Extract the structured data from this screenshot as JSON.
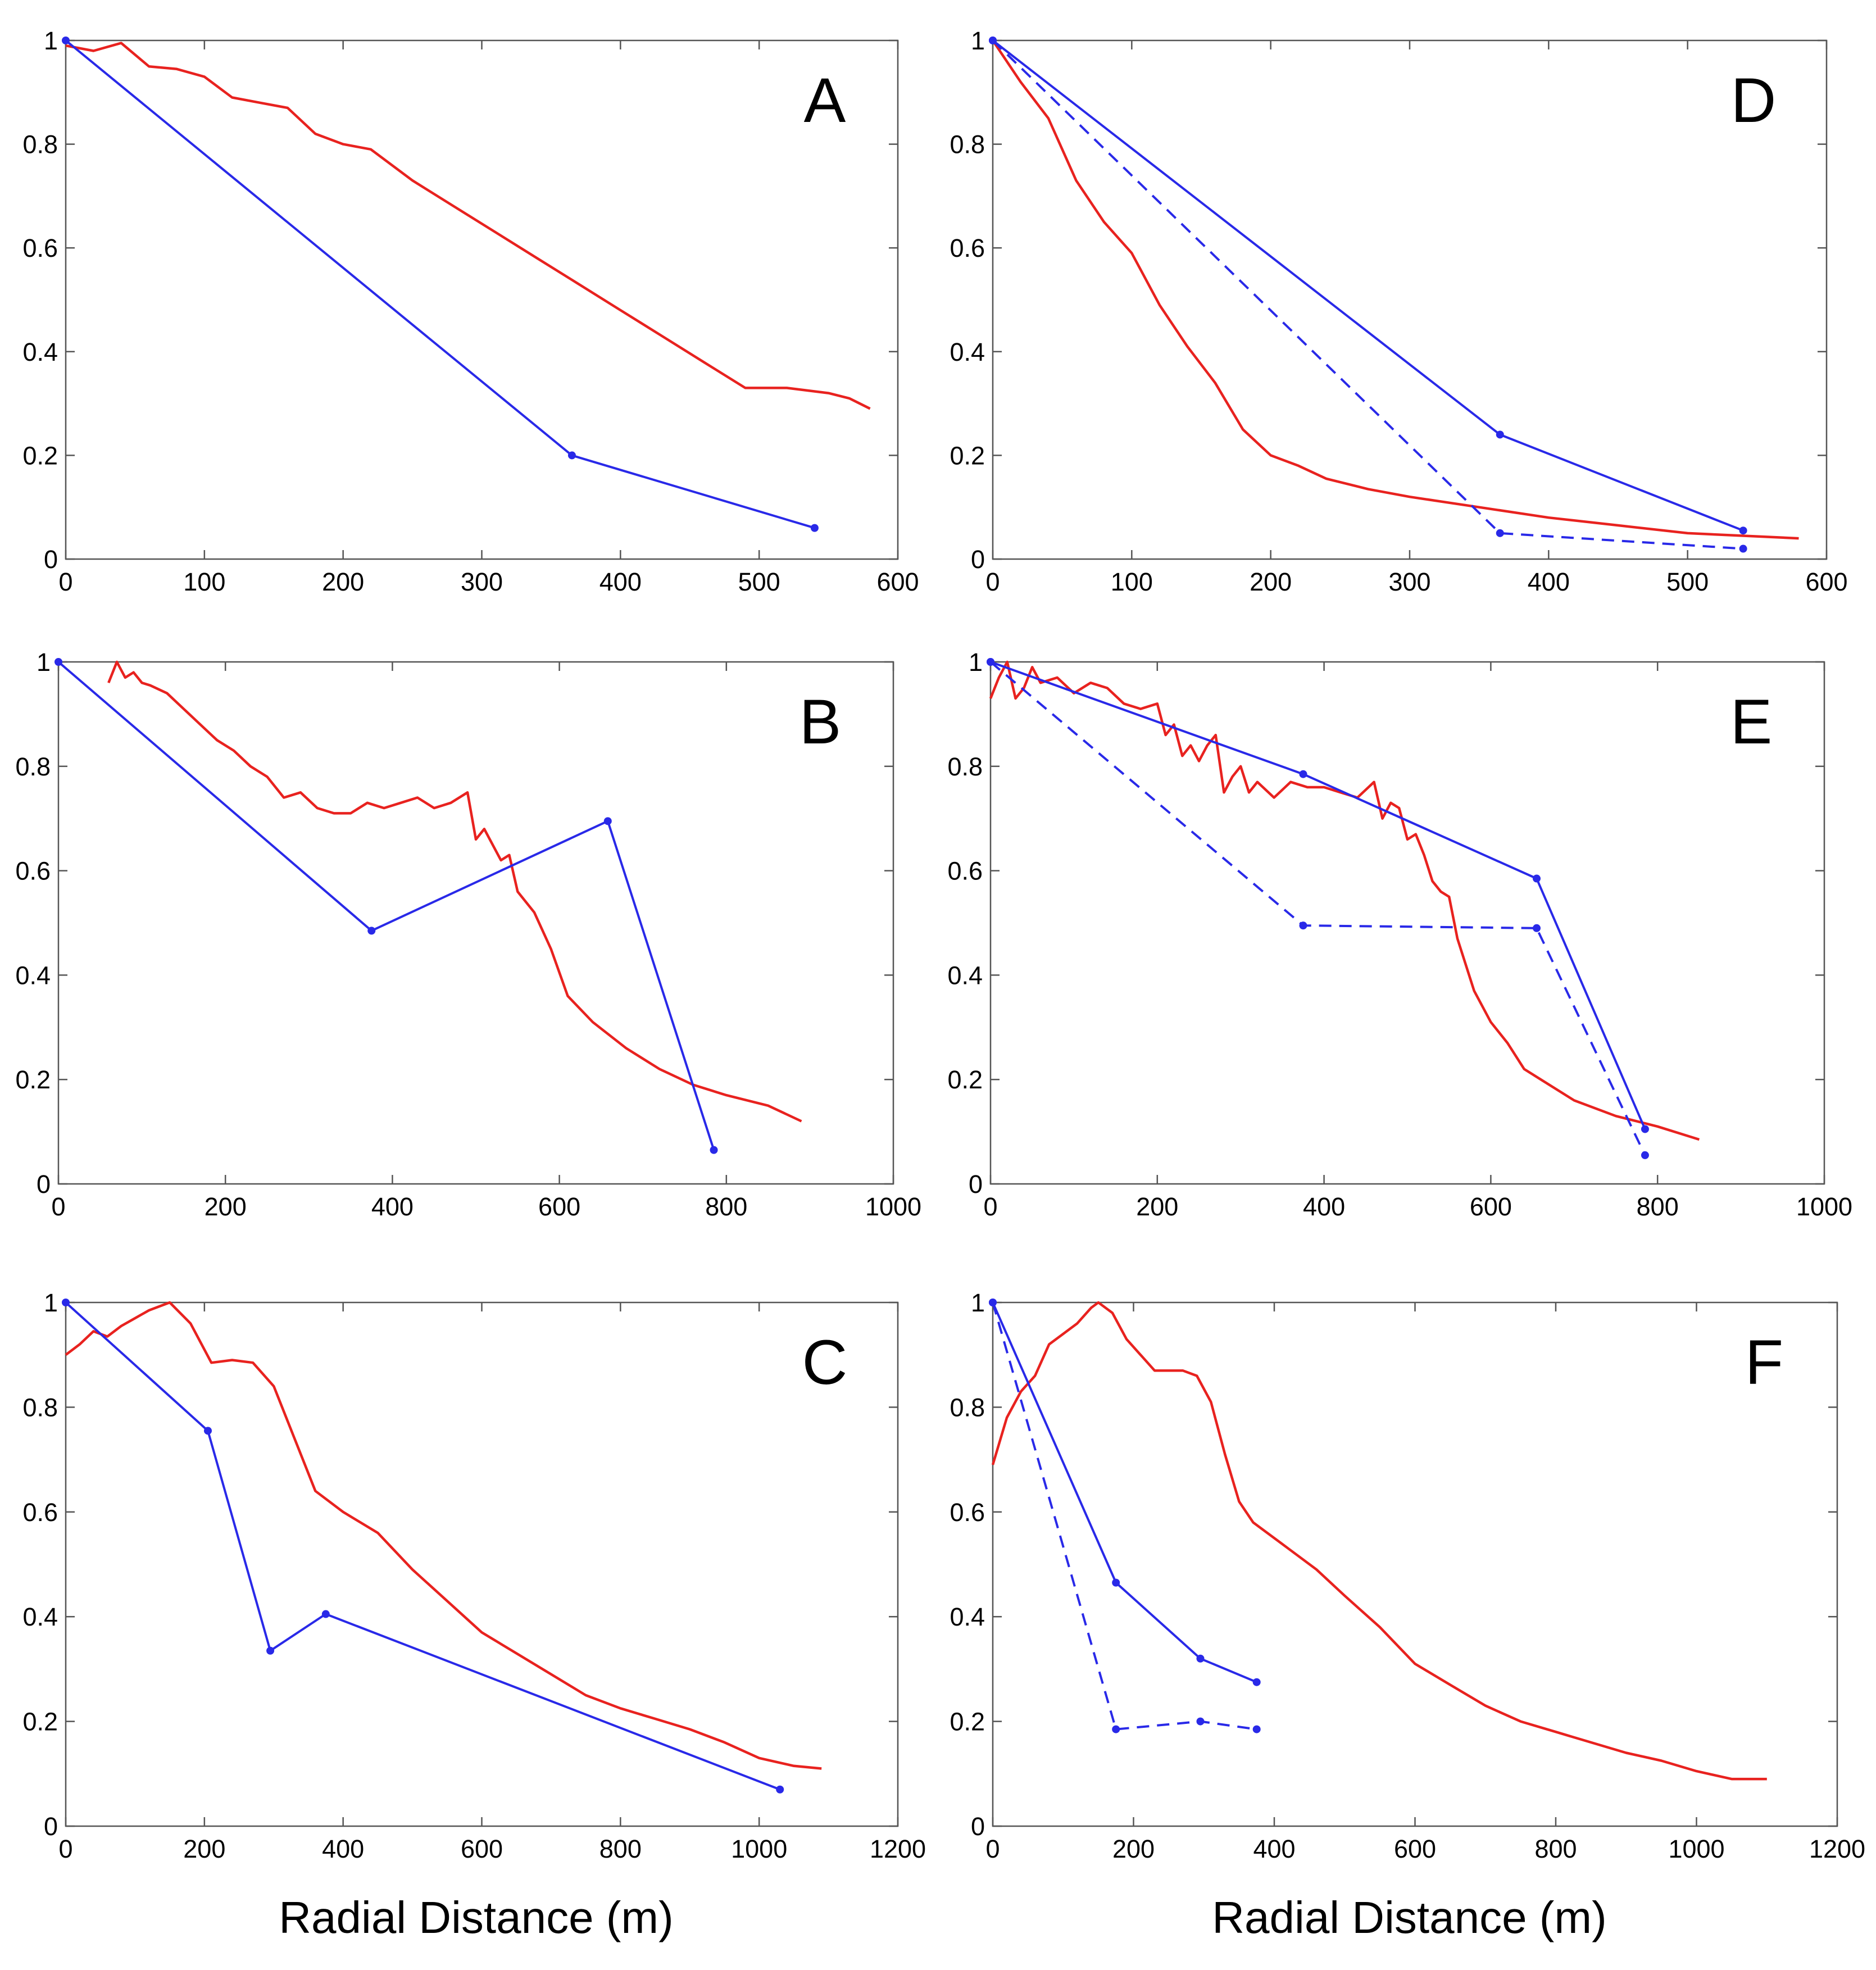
{
  "chart_data": [
    {
      "type": "line",
      "panel_label": "A",
      "xlim": [
        0,
        600
      ],
      "ylim": [
        0,
        1
      ],
      "xticks": [
        "0",
        "100",
        "200",
        "300",
        "400",
        "500",
        "600"
      ],
      "yticks": [
        "0",
        "0.2",
        "0.4",
        "0.6",
        "0.8",
        "1"
      ],
      "xlabel": "",
      "series": [
        {
          "name": "red-profile",
          "color": "#e8221f",
          "style": "solid",
          "markers": false,
          "x": [
            0,
            20,
            40,
            60,
            80,
            100,
            120,
            140,
            160,
            180,
            200,
            220,
            250,
            280,
            310,
            340,
            370,
            400,
            430,
            460,
            490,
            520,
            550,
            565,
            580
          ],
          "y": [
            0.99,
            0.98,
            0.995,
            0.95,
            0.945,
            0.93,
            0.89,
            0.88,
            0.87,
            0.82,
            0.8,
            0.79,
            0.73,
            0.68,
            0.63,
            0.58,
            0.53,
            0.48,
            0.43,
            0.38,
            0.33,
            0.33,
            0.32,
            0.31,
            0.29
          ]
        },
        {
          "name": "blue-solid",
          "color": "#2929e8",
          "style": "solid",
          "markers": true,
          "x": [
            0,
            365,
            540
          ],
          "y": [
            1.0,
            0.2,
            0.06
          ]
        }
      ]
    },
    {
      "type": "line",
      "panel_label": "B",
      "xlim": [
        0,
        1000
      ],
      "ylim": [
        0,
        1
      ],
      "xticks": [
        "0",
        "200",
        "400",
        "600",
        "800",
        "1000"
      ],
      "yticks": [
        "0",
        "0.2",
        "0.4",
        "0.6",
        "0.8",
        "1"
      ],
      "xlabel": "",
      "series": [
        {
          "name": "red-profile",
          "color": "#e8221f",
          "style": "solid",
          "markers": false,
          "x": [
            60,
            70,
            80,
            90,
            100,
            110,
            130,
            150,
            170,
            190,
            210,
            230,
            250,
            270,
            290,
            310,
            330,
            350,
            370,
            390,
            410,
            430,
            450,
            470,
            490,
            500,
            510,
            530,
            540,
            550,
            570,
            590,
            610,
            640,
            680,
            720,
            760,
            800,
            850,
            890
          ],
          "y": [
            0.96,
            1.0,
            0.97,
            0.98,
            0.96,
            0.955,
            0.94,
            0.91,
            0.88,
            0.85,
            0.83,
            0.8,
            0.78,
            0.74,
            0.75,
            0.72,
            0.71,
            0.71,
            0.73,
            0.72,
            0.73,
            0.74,
            0.72,
            0.73,
            0.75,
            0.66,
            0.68,
            0.62,
            0.63,
            0.56,
            0.52,
            0.45,
            0.36,
            0.31,
            0.26,
            0.22,
            0.19,
            0.17,
            0.15,
            0.12
          ]
        },
        {
          "name": "blue-solid",
          "color": "#2929e8",
          "style": "solid",
          "markers": true,
          "x": [
            0,
            375,
            658,
            785
          ],
          "y": [
            1.0,
            0.485,
            0.695,
            0.065
          ]
        }
      ]
    },
    {
      "type": "line",
      "panel_label": "C",
      "xlim": [
        0,
        1200
      ],
      "ylim": [
        0,
        1
      ],
      "xticks": [
        "0",
        "200",
        "400",
        "600",
        "800",
        "1000",
        "1200"
      ],
      "yticks": [
        "0",
        "0.2",
        "0.4",
        "0.6",
        "0.8",
        "1"
      ],
      "xlabel": "Radial Distance (m)",
      "series": [
        {
          "name": "red-profile",
          "color": "#e8221f",
          "style": "solid",
          "markers": false,
          "x": [
            0,
            20,
            40,
            60,
            80,
            100,
            120,
            150,
            180,
            210,
            240,
            270,
            300,
            330,
            360,
            400,
            450,
            500,
            550,
            600,
            650,
            700,
            750,
            800,
            850,
            900,
            950,
            1000,
            1050,
            1090
          ],
          "y": [
            0.9,
            0.92,
            0.945,
            0.935,
            0.955,
            0.97,
            0.985,
            1.0,
            0.96,
            0.885,
            0.89,
            0.885,
            0.84,
            0.74,
            0.64,
            0.6,
            0.56,
            0.49,
            0.43,
            0.37,
            0.33,
            0.29,
            0.25,
            0.225,
            0.205,
            0.185,
            0.16,
            0.13,
            0.115,
            0.11
          ]
        },
        {
          "name": "blue-solid",
          "color": "#2929e8",
          "style": "solid",
          "markers": true,
          "x": [
            0,
            205,
            295,
            375,
            1030
          ],
          "y": [
            1.0,
            0.755,
            0.335,
            0.405,
            0.07
          ]
        }
      ]
    },
    {
      "type": "line",
      "panel_label": "D",
      "xlim": [
        0,
        600
      ],
      "ylim": [
        0,
        1
      ],
      "xticks": [
        "0",
        "100",
        "200",
        "300",
        "400",
        "500",
        "600"
      ],
      "yticks": [
        "0",
        "0.2",
        "0.4",
        "0.6",
        "0.8",
        "1"
      ],
      "xlabel": "",
      "series": [
        {
          "name": "red-profile",
          "color": "#e8221f",
          "style": "solid",
          "markers": false,
          "x": [
            0,
            20,
            40,
            60,
            80,
            100,
            120,
            140,
            160,
            180,
            200,
            220,
            240,
            270,
            300,
            350,
            400,
            450,
            500,
            540,
            580
          ],
          "y": [
            1.0,
            0.92,
            0.85,
            0.73,
            0.65,
            0.59,
            0.49,
            0.41,
            0.34,
            0.25,
            0.2,
            0.18,
            0.155,
            0.135,
            0.12,
            0.1,
            0.08,
            0.065,
            0.05,
            0.045,
            0.04
          ]
        },
        {
          "name": "blue-solid",
          "color": "#2929e8",
          "style": "solid",
          "markers": true,
          "x": [
            0,
            365,
            540
          ],
          "y": [
            1.0,
            0.24,
            0.055
          ]
        },
        {
          "name": "blue-dashed",
          "color": "#2929e8",
          "style": "dashed",
          "markers": true,
          "x": [
            0,
            365,
            540
          ],
          "y": [
            1.0,
            0.05,
            0.02
          ]
        }
      ]
    },
    {
      "type": "line",
      "panel_label": "E",
      "xlim": [
        0,
        1000
      ],
      "ylim": [
        0,
        1
      ],
      "xticks": [
        "0",
        "200",
        "400",
        "600",
        "800",
        "1000"
      ],
      "yticks": [
        "0",
        "0.2",
        "0.4",
        "0.6",
        "0.8",
        "1"
      ],
      "xlabel": "",
      "series": [
        {
          "name": "red-profile",
          "color": "#e8221f",
          "style": "solid",
          "markers": false,
          "x": [
            0,
            10,
            20,
            30,
            40,
            50,
            60,
            80,
            100,
            120,
            140,
            160,
            180,
            200,
            210,
            220,
            230,
            240,
            250,
            260,
            270,
            280,
            290,
            300,
            310,
            320,
            340,
            360,
            380,
            400,
            420,
            440,
            460,
            470,
            480,
            490,
            500,
            510,
            520,
            530,
            540,
            550,
            560,
            580,
            600,
            620,
            640,
            660,
            700,
            750,
            800,
            850
          ],
          "y": [
            0.93,
            0.97,
            1.0,
            0.93,
            0.95,
            0.99,
            0.96,
            0.97,
            0.94,
            0.96,
            0.95,
            0.92,
            0.91,
            0.92,
            0.86,
            0.88,
            0.82,
            0.84,
            0.81,
            0.84,
            0.86,
            0.75,
            0.78,
            0.8,
            0.75,
            0.77,
            0.74,
            0.77,
            0.76,
            0.76,
            0.75,
            0.74,
            0.77,
            0.7,
            0.73,
            0.72,
            0.66,
            0.67,
            0.63,
            0.58,
            0.56,
            0.55,
            0.47,
            0.37,
            0.31,
            0.27,
            0.22,
            0.2,
            0.16,
            0.13,
            0.11,
            0.085
          ]
        },
        {
          "name": "blue-solid",
          "color": "#2929e8",
          "style": "solid",
          "markers": true,
          "x": [
            0,
            375,
            655,
            785
          ],
          "y": [
            1.0,
            0.785,
            0.585,
            0.105
          ]
        },
        {
          "name": "blue-dashed",
          "color": "#2929e8",
          "style": "dashed",
          "markers": true,
          "x": [
            0,
            375,
            655,
            785
          ],
          "y": [
            1.0,
            0.495,
            0.49,
            0.055
          ]
        }
      ]
    },
    {
      "type": "line",
      "panel_label": "F",
      "xlim": [
        0,
        1200
      ],
      "ylim": [
        0,
        1
      ],
      "xticks": [
        "0",
        "200",
        "400",
        "600",
        "800",
        "1000",
        "1200"
      ],
      "yticks": [
        "0",
        "0.2",
        "0.4",
        "0.6",
        "0.8",
        "1"
      ],
      "xlabel": "Radial Distance (m)",
      "series": [
        {
          "name": "red-profile",
          "color": "#e8221f",
          "style": "solid",
          "markers": false,
          "x": [
            0,
            20,
            40,
            60,
            80,
            100,
            120,
            140,
            150,
            170,
            190,
            210,
            230,
            250,
            270,
            290,
            310,
            330,
            350,
            370,
            390,
            420,
            460,
            500,
            550,
            600,
            650,
            700,
            750,
            800,
            850,
            900,
            950,
            1000,
            1050,
            1100
          ],
          "y": [
            0.69,
            0.78,
            0.83,
            0.86,
            0.92,
            0.94,
            0.96,
            0.99,
            1.0,
            0.98,
            0.93,
            0.9,
            0.87,
            0.87,
            0.87,
            0.86,
            0.81,
            0.71,
            0.62,
            0.58,
            0.56,
            0.53,
            0.49,
            0.44,
            0.38,
            0.31,
            0.27,
            0.23,
            0.2,
            0.18,
            0.16,
            0.14,
            0.125,
            0.105,
            0.09,
            0.09
          ]
        },
        {
          "name": "blue-solid",
          "color": "#2929e8",
          "style": "solid",
          "markers": true,
          "x": [
            0,
            175,
            295,
            375
          ],
          "y": [
            1.0,
            0.465,
            0.32,
            0.275
          ]
        },
        {
          "name": "blue-dashed",
          "color": "#2929e8",
          "style": "dashed",
          "markers": true,
          "x": [
            0,
            175,
            295,
            375
          ],
          "y": [
            1.0,
            0.185,
            0.2,
            0.185
          ]
        }
      ]
    }
  ]
}
